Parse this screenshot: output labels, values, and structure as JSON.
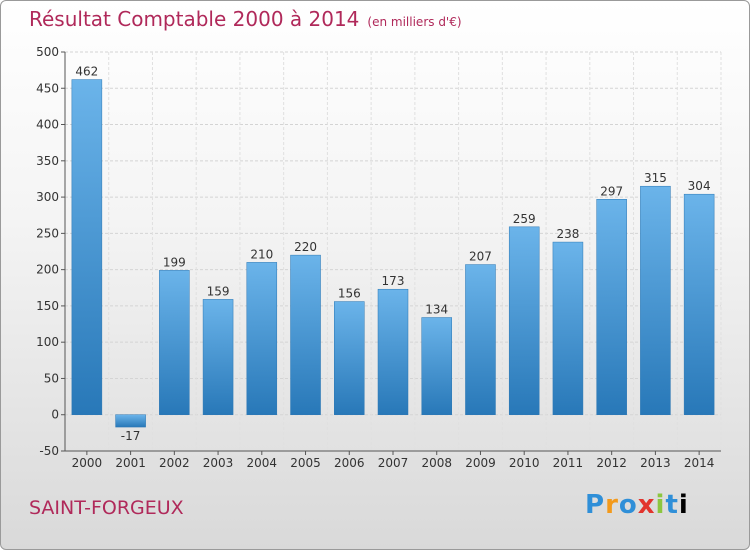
{
  "header": {
    "title": "Résultat Comptable 2000 à 2014",
    "unit": "(en milliers d'€)"
  },
  "footer": {
    "place": "SAINT-FORGEUX",
    "logo_letters": [
      "P",
      "r",
      "o",
      "x",
      "i",
      "t",
      "i"
    ]
  },
  "colors": {
    "bar_light": "#6bb4ea",
    "bar_dark": "#2878b8",
    "title": "#b0295a"
  },
  "chart_data": {
    "type": "bar",
    "categories": [
      "2000",
      "2001",
      "2002",
      "2003",
      "2004",
      "2005",
      "2006",
      "2007",
      "2008",
      "2009",
      "2010",
      "2011",
      "2012",
      "2013",
      "2014"
    ],
    "values": [
      462,
      -17,
      199,
      159,
      210,
      220,
      156,
      173,
      134,
      207,
      259,
      238,
      297,
      315,
      304
    ],
    "ylim": [
      -50,
      500
    ],
    "yticks": [
      -50,
      0,
      50,
      100,
      150,
      200,
      250,
      300,
      350,
      400,
      450,
      500
    ],
    "grid": true
  }
}
